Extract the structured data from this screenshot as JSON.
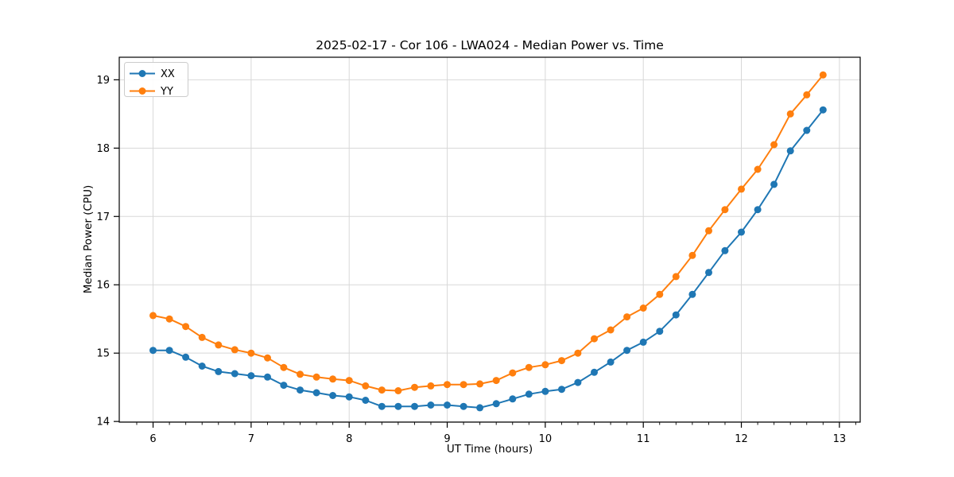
{
  "title": "2025-02-17 - Cor 106 - LWA024 - Median Power vs. Time",
  "colors": {
    "series_xx": "#1f77b4",
    "series_yy": "#ff7f0e",
    "grid": "#d8d8d8",
    "spine": "#000000",
    "background": "#ffffff",
    "legend_border": "#cccccc"
  },
  "legend": {
    "position": "upper left",
    "items": [
      {
        "label": "XX",
        "color": "#1f77b4"
      },
      {
        "label": "YY",
        "color": "#ff7f0e"
      }
    ]
  },
  "chart_data": {
    "type": "line",
    "title": "2025-02-17 - Cor 106 - LWA024 - Median Power vs. Time",
    "xlabel": "UT Time (hours)",
    "ylabel": "Median Power (CPU)",
    "xlim": [
      5.655,
      13.212
    ],
    "ylim": [
      13.99,
      19.33
    ],
    "x_ticks": [
      6,
      7,
      8,
      9,
      10,
      11,
      12,
      13
    ],
    "y_ticks": [
      14,
      15,
      16,
      17,
      18,
      19
    ],
    "x_minor_step": 0.166667,
    "grid": true,
    "legend_position": "upper left",
    "marker": "circle",
    "x": [
      6.0,
      6.167,
      6.333,
      6.5,
      6.667,
      6.833,
      7.0,
      7.167,
      7.333,
      7.5,
      7.667,
      7.833,
      8.0,
      8.167,
      8.333,
      8.5,
      8.667,
      8.833,
      9.0,
      9.167,
      9.333,
      9.5,
      9.667,
      9.833,
      10.0,
      10.167,
      10.333,
      10.5,
      10.667,
      10.833,
      11.0,
      11.167,
      11.333,
      11.5,
      11.667,
      11.833,
      12.0,
      12.167,
      12.333,
      12.5,
      12.667,
      12.833
    ],
    "series": [
      {
        "name": "XX",
        "color": "#1f77b4",
        "values": [
          15.04,
          15.04,
          14.94,
          14.81,
          14.73,
          14.7,
          14.67,
          14.65,
          14.53,
          14.46,
          14.42,
          14.38,
          14.36,
          14.31,
          14.22,
          14.22,
          14.22,
          14.24,
          14.24,
          14.22,
          14.2,
          14.26,
          14.33,
          14.4,
          14.44,
          14.47,
          14.57,
          14.72,
          14.87,
          15.04,
          15.16,
          15.32,
          15.56,
          15.86,
          16.18,
          16.5,
          16.77,
          17.1,
          17.47,
          17.96,
          18.26,
          18.56
        ]
      },
      {
        "name": "YY",
        "color": "#ff7f0e",
        "values": [
          15.55,
          15.5,
          15.39,
          15.23,
          15.12,
          15.05,
          15.0,
          14.93,
          14.79,
          14.69,
          14.65,
          14.62,
          14.6,
          14.52,
          14.46,
          14.45,
          14.5,
          14.52,
          14.54,
          14.54,
          14.55,
          14.6,
          14.71,
          14.79,
          14.83,
          14.89,
          15.0,
          15.21,
          15.34,
          15.53,
          15.66,
          15.86,
          16.12,
          16.43,
          16.79,
          17.1,
          17.4,
          17.69,
          18.05,
          18.5,
          18.78,
          19.07
        ]
      }
    ]
  }
}
